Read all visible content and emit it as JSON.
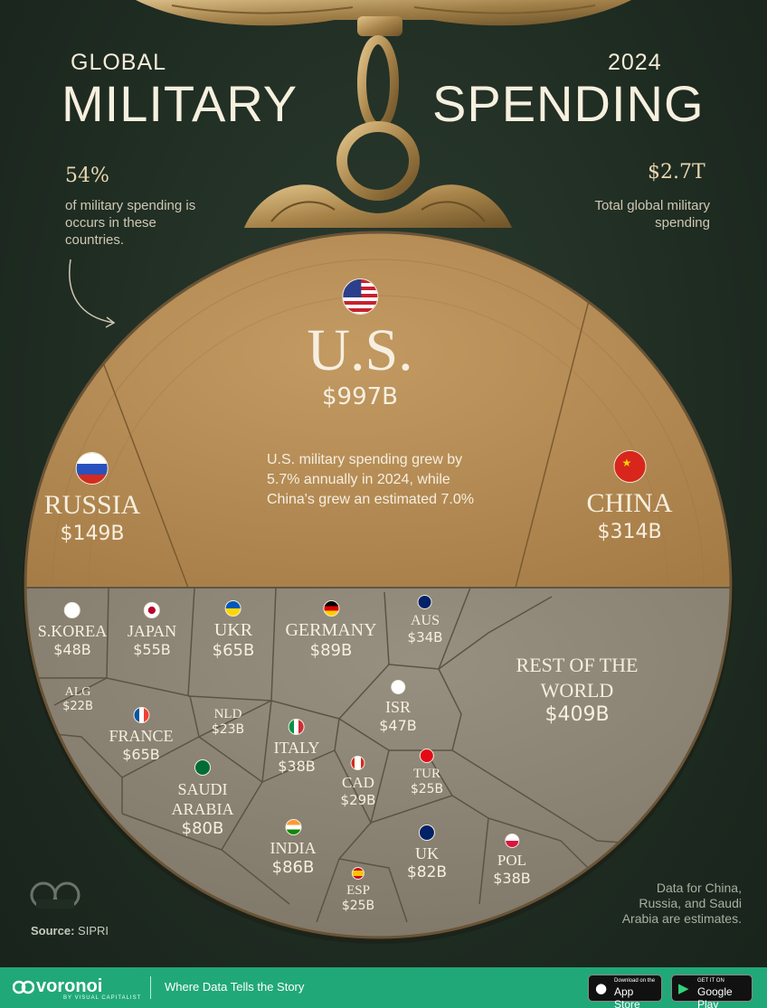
{
  "header": {
    "title_left_small": "GLOBAL",
    "title_left_big": "MILITARY",
    "title_right_small": "2024",
    "title_right_big": "SPENDING"
  },
  "left_note": {
    "stat": "54%",
    "text": "of military spending is occurs in these countries."
  },
  "right_note": {
    "stat": "$2.7T",
    "text": "Total global military spending"
  },
  "us_note": "U.S. military spending grew by 5.7% annually in 2024, while China's grew an estimated 7.0%",
  "chart_data": {
    "type": "voronoi",
    "unit": "USD billions",
    "top_segments": [
      {
        "name": "U.S.",
        "value": 997,
        "label": "$997B"
      },
      {
        "name": "RUSSIA",
        "value": 149,
        "label": "$149B"
      },
      {
        "name": "CHINA",
        "value": 314,
        "label": "$314B"
      }
    ],
    "cells": [
      {
        "name": "S.KOREA",
        "value": 48,
        "label": "$48B"
      },
      {
        "name": "JAPAN",
        "value": 55,
        "label": "$55B"
      },
      {
        "name": "UKR",
        "value": 65,
        "label": "$65B"
      },
      {
        "name": "GERMANY",
        "value": 89,
        "label": "$89B"
      },
      {
        "name": "AUS",
        "value": 34,
        "label": "$34B"
      },
      {
        "name": "ALG",
        "value": 22,
        "label": "$22B"
      },
      {
        "name": "FRANCE",
        "value": 65,
        "label": "$65B"
      },
      {
        "name": "NLD",
        "value": 23,
        "label": "$23B"
      },
      {
        "name": "ITALY",
        "value": 38,
        "label": "$38B"
      },
      {
        "name": "ISR",
        "value": 47,
        "label": "$47B"
      },
      {
        "name": "SAUDI ARABIA",
        "value": 80,
        "label": "$80B"
      },
      {
        "name": "CAD",
        "value": 29,
        "label": "$29B"
      },
      {
        "name": "TUR",
        "value": 25,
        "label": "$25B"
      },
      {
        "name": "INDIA",
        "value": 86,
        "label": "$86B"
      },
      {
        "name": "ESP",
        "value": 25,
        "label": "$25B"
      },
      {
        "name": "UK",
        "value": 82,
        "label": "$82B"
      },
      {
        "name": "POL",
        "value": 38,
        "label": "$38B"
      },
      {
        "name": "REST OF THE WORLD",
        "value": 409,
        "label": "$409B"
      }
    ],
    "colors": {
      "top": "#b48b55",
      "bottom": "#8a8070",
      "lines": "#5f5545"
    }
  },
  "source": {
    "label": "Source:",
    "value": "SIPRI"
  },
  "estimate_note": "Data for China, Russia, and Saudi Arabia are estimates.",
  "footer": {
    "brand": "voronoi",
    "brand_sub": "BY VISUAL CAPITALIST",
    "tagline": "Where Data Tells the Story",
    "app_store_small": "Download on the",
    "app_store": "App Store",
    "google_small": "GET IT ON",
    "google": "Google Play"
  }
}
